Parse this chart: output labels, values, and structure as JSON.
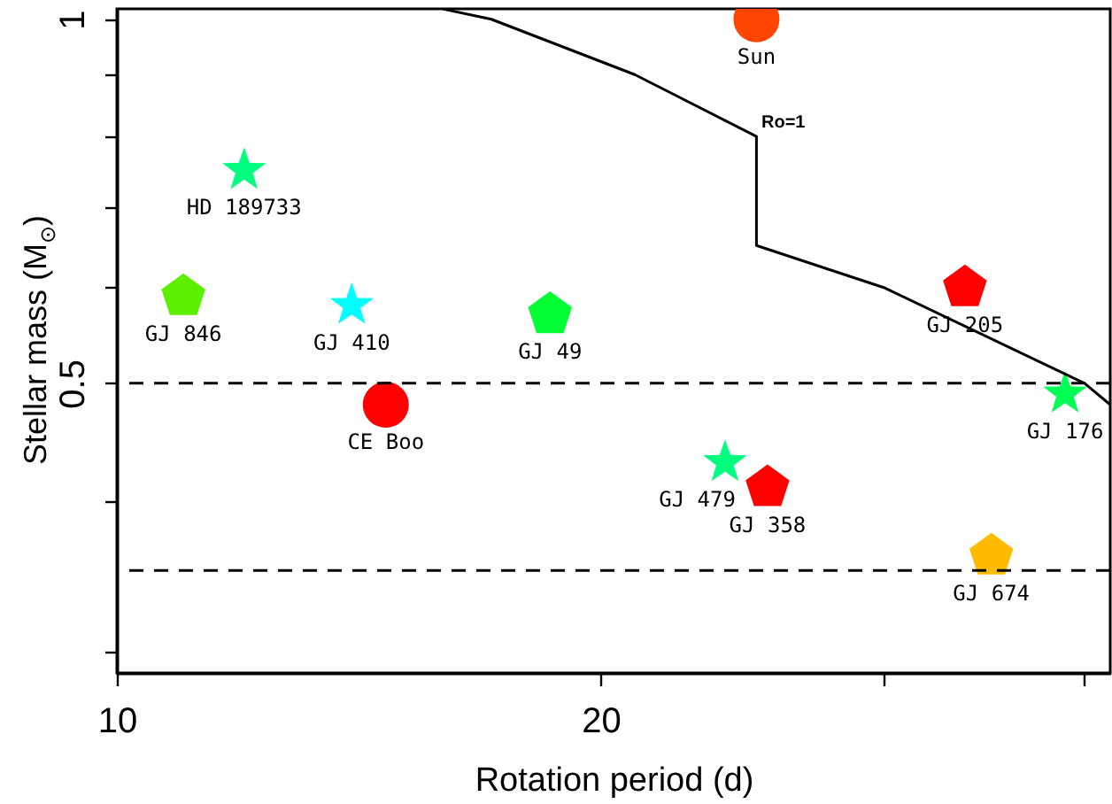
{
  "chart_data": {
    "type": "scatter",
    "xlabel": "Rotation period (d)",
    "ylabel": "Stellar mass (M$_{⊙}$)",
    "log": "xy",
    "xlim": [
      10,
      41.5
    ],
    "ylim": [
      0.288,
      1.02
    ],
    "xticks": [
      10,
      20,
      {
        "value": 30,
        "label": null
      },
      {
        "value": 40,
        "label": null
      }
    ],
    "yticks": [
      {
        "value": 0.3,
        "label": null
      },
      {
        "value": 0.4,
        "label": null
      },
      0.5,
      {
        "value": 0.6,
        "label": null
      },
      {
        "value": 0.7,
        "label": null
      },
      {
        "value": 0.8,
        "label": null
      },
      {
        "value": 0.9,
        "label": null
      },
      1
    ],
    "series": [
      {
        "name": "Sun",
        "color": "#ff4500",
        "marker": "circle",
        "x": [
          25.0
        ],
        "values": [
          1.0
        ]
      },
      {
        "name": "HD 189733",
        "color": "#00ff7f",
        "marker": "star",
        "x": [
          12.0
        ],
        "values": [
          0.75
        ]
      },
      {
        "name": "GJ 846",
        "color": "#5cf000",
        "x": [
          11.0
        ],
        "values": [
          0.59
        ]
      },
      {
        "name": "GJ 410",
        "color": "#00ffff",
        "marker": "star",
        "x": [
          14.0
        ],
        "values": [
          0.58
        ]
      },
      {
        "name": "CE Boo",
        "color": "#ff0000",
        "marker": "circle",
        "x": [
          14.7
        ],
        "values": [
          0.48
        ]
      },
      {
        "name": "GJ 49",
        "color": "#00ff33",
        "x": [
          18.6
        ],
        "values": [
          0.57
        ]
      },
      {
        "name": "GJ 358",
        "color": "#ff0000",
        "x": [
          25.4
        ],
        "values": [
          0.41
        ]
      },
      {
        "name": "GJ 479",
        "color": "#00ff7f",
        "marker": "star",
        "x": [
          23.9
        ],
        "values": [
          0.43
        ]
      },
      {
        "name": "GJ 205",
        "color": "#ff0000",
        "x": [
          33.7
        ],
        "values": [
          0.6
        ]
      },
      {
        "name": "GJ 176",
        "color": "#00ff55",
        "marker": "star",
        "x": [
          38.9
        ],
        "values": [
          0.49
        ]
      },
      {
        "name": "GJ 674",
        "color": "#ffbb00",
        "x": [
          35.0
        ],
        "values": [
          0.36
        ]
      },
      {
        "type": "line",
        "color": "#000000",
        "line_style": "solid",
        "x": [
          15.95,
          17.1,
          21.0,
          25.0,
          25.0,
          30.0,
          40.0,
          41.5
        ],
        "values": [
          1.02,
          1.0,
          0.9,
          0.8,
          0.65,
          0.6,
          0.5,
          0.48
        ]
      }
    ],
    "ref_lines": [
      {
        "axis": "y",
        "value": 0.5,
        "color": "#000000",
        "line_style": "dashed"
      },
      {
        "axis": "y",
        "value": 0.35,
        "color": "#000000",
        "line_style": "dashed"
      }
    ],
    "annotations": [
      "Ro=1"
    ]
  }
}
